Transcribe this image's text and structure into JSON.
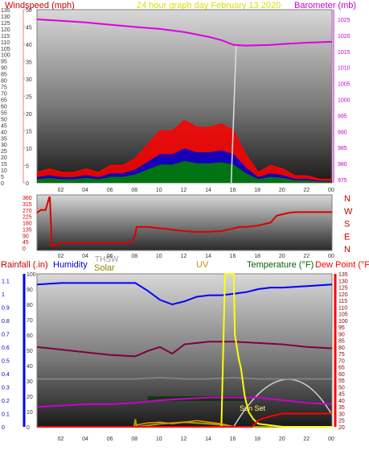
{
  "header": {
    "left": "Windspeed (mph)",
    "center": "24 hour graph day   February 13 2020",
    "right": "Barometer (mb)"
  },
  "colors": {
    "wind": "#ff0000",
    "gust_fill": "#ff0000",
    "avg_fill": "#0000cc",
    "low_fill": "#008000",
    "barometer": "#dd00dd",
    "direction": "#dd0000",
    "humidity": "#0000ff",
    "temperature": "#800040",
    "thsw": "#808080",
    "solar": "#a0a000",
    "uv": "#ffff00",
    "rain": "#ff0000",
    "dewpoint": "#cc00cc",
    "sun_arc": "#d0d0d0",
    "rain_axis": "#0000ff",
    "dew_axis": "#ff0000"
  },
  "x_ticks": [
    "02",
    "04",
    "06",
    "08",
    "10",
    "12",
    "14",
    "16",
    "18",
    "20",
    "22",
    "00"
  ],
  "panel1": {
    "left_ticks": [
      "0",
      "5",
      "10",
      "15",
      "20",
      "25",
      "30",
      "35",
      "40",
      "45",
      "50",
      "55",
      "60",
      "65",
      "70",
      "75",
      "80",
      "85",
      "90",
      "95",
      "100",
      "105",
      "110",
      "115",
      "120",
      "125",
      "130",
      "135"
    ],
    "mid_ticks": [
      "0",
      "5",
      "10",
      "15",
      "20",
      "25",
      "30",
      "35",
      "40",
      "45",
      "50"
    ],
    "right_ticks": [
      "975",
      "980",
      "985",
      "990",
      "995",
      "1000",
      "1005",
      "1010",
      "1015",
      "1020",
      "1025"
    ]
  },
  "panel2": {
    "left_ticks": [
      "0",
      "45",
      "90",
      "135",
      "180",
      "225",
      "270",
      "315",
      "360"
    ],
    "right_labels": [
      "N",
      "W",
      "S",
      "E",
      "N"
    ]
  },
  "panel3": {
    "headers": {
      "rain": "Rainfall (.in)",
      "humidity": "Humidity",
      "thsw": "THSW",
      "solar": "Solar",
      "uv": "UV",
      "temperature": "Temperature (°F)",
      "dewpoint": "Dew Point (°F)"
    },
    "left_ticks": [
      "0",
      "0.1",
      "0.2",
      "0.3",
      "0.4",
      "0.5",
      "0.6",
      "0.7",
      "0.8",
      "0.9",
      "1",
      "1.1"
    ],
    "mid_ticks": [
      "0",
      "10",
      "20",
      "30",
      "40",
      "50",
      "60",
      "70",
      "80",
      "90",
      "100"
    ],
    "right_ticks": [
      "20",
      "25",
      "30",
      "35",
      "40",
      "45",
      "50",
      "55",
      "60",
      "65",
      "70",
      "75",
      "80",
      "85",
      "90",
      "95",
      "100",
      "105",
      "110",
      "115",
      "120",
      "125",
      "130",
      "135"
    ],
    "sunset_label": "Sun Set"
  },
  "chart_data": [
    {
      "type": "line",
      "series": [
        {
          "name": "Barometer",
          "unit": "mb",
          "x": [
            0,
            2,
            4,
            6,
            8,
            10,
            12,
            14,
            15,
            16,
            17,
            18,
            19,
            20,
            22,
            24
          ],
          "values": [
            1025,
            1024.5,
            1024,
            1023.3,
            1022.6,
            1022,
            1021,
            1019.5,
            1018.5,
            1017,
            1016.8,
            1016.9,
            1017,
            1017.3,
            1017.7,
            1018
          ]
        },
        {
          "name": "Windspeed gust",
          "unit": "mph",
          "x": [
            0,
            1,
            2,
            3,
            4,
            5,
            6,
            7,
            8,
            9,
            10,
            11,
            12,
            13,
            14,
            15,
            16,
            17,
            18,
            19,
            20,
            21,
            22,
            23,
            24
          ],
          "values": [
            3,
            4,
            3,
            3,
            4,
            3,
            5,
            5,
            7,
            11,
            15,
            15,
            18,
            16,
            16,
            17,
            15,
            8,
            3,
            5,
            4,
            2,
            2,
            1,
            1
          ]
        }
      ],
      "ylim_left": [
        0,
        135
      ],
      "ylim_right": [
        974,
        1028
      ],
      "xlim": [
        0,
        24
      ]
    },
    {
      "type": "line",
      "series": [
        {
          "name": "Wind direction",
          "unit": "deg",
          "x": [
            0,
            0.3,
            0.7,
            1.0,
            1.05,
            1.1,
            1.15,
            1.2,
            2,
            4,
            6,
            7.5,
            7.7,
            8.0,
            8.1,
            9,
            10,
            11,
            12,
            13,
            14,
            15,
            16,
            16.5,
            17,
            18,
            19,
            19.5,
            20,
            20.5,
            21,
            22,
            23,
            24
          ],
          "values": [
            250,
            270,
            270,
            360,
            360,
            250,
            150,
            15,
            35,
            35,
            35,
            35,
            40,
            95,
            150,
            150,
            140,
            130,
            120,
            115,
            115,
            120,
            140,
            150,
            150,
            160,
            180,
            230,
            240,
            250,
            255,
            255,
            255,
            255
          ]
        }
      ],
      "ylim": [
        0,
        360
      ],
      "xlim": [
        0,
        24
      ]
    },
    {
      "type": "line",
      "series": [
        {
          "name": "Humidity",
          "unit": "%",
          "x": [
            0,
            2,
            4,
            6,
            8,
            9,
            10,
            11,
            12,
            13,
            14,
            15,
            16,
            17,
            18,
            19,
            20,
            22,
            24
          ],
          "values": [
            93,
            94,
            94,
            94,
            94,
            89,
            83,
            80,
            82,
            85,
            86,
            86,
            87,
            88,
            90,
            91,
            91,
            92,
            93
          ]
        },
        {
          "name": "Temperature",
          "unit": "°F",
          "x": [
            0,
            2,
            4,
            6,
            8,
            9,
            10,
            11,
            12,
            13,
            14,
            15,
            16,
            18,
            20,
            22,
            24
          ],
          "values": [
            80,
            78,
            76,
            74,
            73,
            77,
            80,
            75,
            82,
            83,
            84,
            84,
            84,
            83,
            82,
            80,
            79
          ]
        },
        {
          "name": "Dew Point",
          "unit": "°F",
          "x": [
            0,
            2,
            4,
            6,
            8,
            10,
            12,
            14,
            16,
            18,
            20,
            22,
            24
          ],
          "values": [
            35,
            36,
            37,
            37,
            38,
            40,
            41,
            42,
            42,
            42,
            40,
            38,
            37
          ]
        },
        {
          "name": "THSW",
          "unit": "°F",
          "x": [
            0,
            2,
            4,
            6,
            8,
            10,
            12,
            14,
            16,
            18,
            20,
            22,
            24
          ],
          "values": [
            56,
            56,
            56,
            56,
            56,
            57,
            56,
            56,
            57,
            56,
            56,
            56,
            56
          ]
        },
        {
          "name": "Solar",
          "unit": "W/m2",
          "x": [
            0,
            7.9,
            8,
            8.1,
            10,
            12,
            14,
            15.5,
            16,
            18,
            20,
            22,
            24
          ],
          "values": [
            0,
            0,
            5,
            0,
            2,
            3,
            2,
            1,
            0,
            0,
            0,
            0,
            0
          ]
        },
        {
          "name": "UV",
          "x": [
            15.0,
            15.3,
            15.9,
            16.0,
            16.1,
            16.2,
            16.4,
            16.6,
            16.9,
            17.2,
            17.6,
            18,
            20,
            24
          ],
          "values": [
            0,
            100,
            100,
            100,
            60,
            55,
            45,
            38,
            20,
            10,
            5,
            2,
            0,
            0
          ]
        },
        {
          "name": "Rainfall",
          "unit": "in",
          "x": [
            0,
            15,
            17.5,
            18,
            19,
            20,
            20.5,
            24
          ],
          "values": [
            0,
            0,
            0,
            0.05,
            0.08,
            0.1,
            0.1,
            0.1
          ]
        }
      ],
      "ylim_rain": [
        0,
        1.15
      ],
      "ylim_humidity": [
        0,
        100
      ],
      "ylim_temp": [
        20,
        135
      ],
      "xlim": [
        0,
        24
      ]
    }
  ]
}
